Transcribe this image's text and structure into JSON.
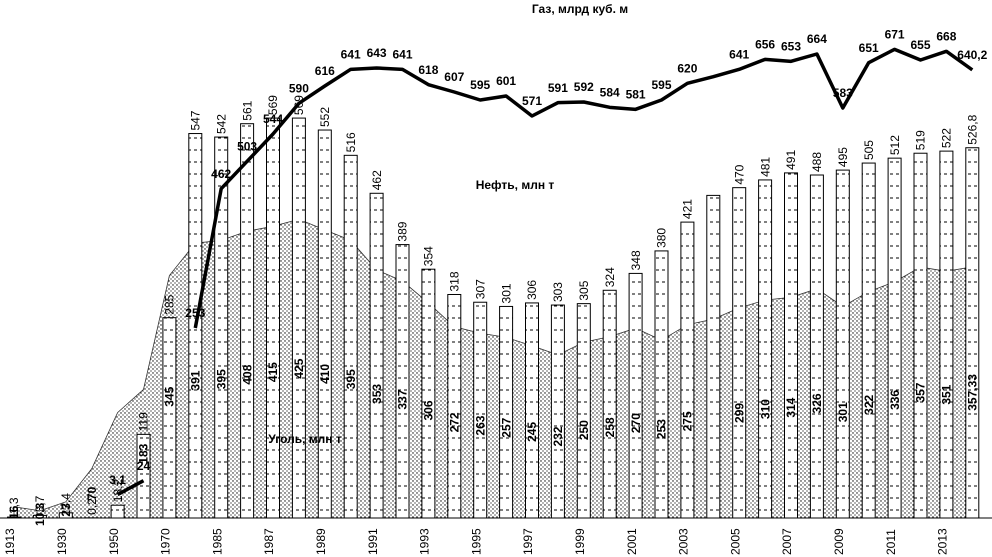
{
  "chart_data": {
    "type": "bar-area-line",
    "categories": [
      "1913",
      null,
      "1930",
      null,
      "1950",
      null,
      "1970",
      null,
      "1985",
      null,
      "1987",
      null,
      "1989",
      null,
      "1991",
      null,
      "1993",
      null,
      "1995",
      null,
      "1997",
      null,
      "1999",
      null,
      "2001",
      null,
      "2003",
      null,
      "2005",
      null,
      "2007",
      null,
      "2009",
      null,
      "2011",
      null,
      "2013",
      null
    ],
    "series": [
      {
        "name": "Нефть, млн т",
        "color": "#ffffff",
        "values": [
          1.3,
          3.7,
          7.4,
          0.2,
          18.2,
          119,
          285,
          547,
          542,
          561,
          569,
          569,
          552,
          516,
          462,
          389,
          354,
          318,
          307,
          301,
          306,
          303,
          305,
          324,
          348,
          380,
          421,
          459,
          470,
          481,
          491,
          488,
          495,
          505,
          512,
          519,
          522,
          526.8
        ],
        "value_labels": [
          "1,3",
          "3,7",
          "7,4",
          "0,2",
          "18,2",
          "119",
          "285",
          "547",
          "542",
          "561",
          "569",
          "569",
          "552",
          "516",
          "462",
          "389",
          "354",
          "318",
          "307",
          "301",
          "306",
          "303",
          "305",
          "324",
          "348",
          "380",
          "421",
          null,
          "470",
          "481",
          "491",
          "488",
          "495",
          "505",
          "512",
          "519",
          "522",
          "526,8"
        ]
      },
      {
        "name": "Уголь, млн т",
        "color": "#000000",
        "values": [
          16,
          10.3,
          23,
          70,
          150,
          183,
          345,
          391,
          395,
          408,
          415,
          425,
          410,
          395,
          353,
          337,
          306,
          272,
          263,
          257,
          245,
          232,
          250,
          258,
          270,
          253,
          275,
          283,
          299,
          310,
          314,
          326,
          301,
          322,
          336,
          357,
          351,
          357.33
        ],
        "value_labels": [
          "16",
          "10,3",
          "23",
          "70",
          null,
          "183",
          "345",
          "391",
          "395",
          "408",
          "415",
          "425",
          "410",
          "395",
          "353",
          "337",
          "306",
          "272",
          "263",
          "257",
          "245",
          "232",
          "250",
          "258",
          "270",
          "253",
          "275",
          null,
          "299",
          "310",
          "314",
          "326",
          "301",
          "322",
          "336",
          "357",
          "351",
          "357,33"
        ]
      },
      {
        "name": "Газ, млрд куб. м",
        "color": "#000000",
        "axis": "y2",
        "values": [
          null,
          null,
          null,
          null,
          3.1,
          24,
          null,
          253,
          462,
          503,
          544,
          590,
          616,
          641,
          643,
          641,
          618,
          607,
          595,
          601,
          571,
          591,
          592,
          584,
          581,
          595,
          620,
          630,
          641,
          656,
          653,
          664,
          583,
          651,
          671,
          655,
          668,
          640.2
        ],
        "value_labels": [
          null,
          null,
          null,
          null,
          "3,1",
          "24",
          null,
          "253",
          "462",
          "503",
          "544",
          "590",
          "616",
          "641",
          "643",
          "641",
          "618",
          "607",
          "595",
          "601",
          "571",
          "591",
          "592",
          "584",
          "581",
          "595",
          "620",
          null,
          "641",
          "656",
          "653",
          "664",
          "583",
          "651",
          "671",
          "655",
          "668",
          "640,2"
        ]
      }
    ],
    "ylim": [
      0,
      737
    ],
    "y2lim": [
      -32,
      745
    ]
  }
}
